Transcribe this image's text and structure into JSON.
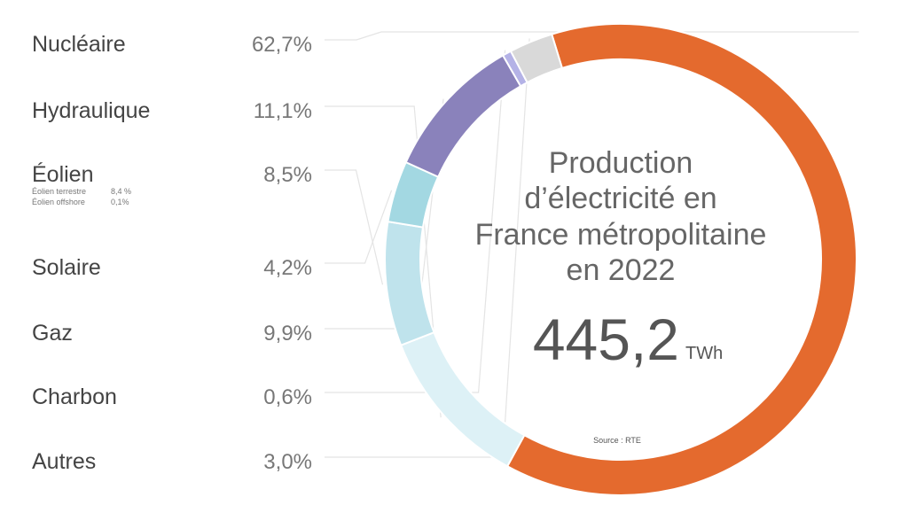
{
  "chart_data": {
    "type": "pie",
    "title_lines": [
      "Production",
      "d’électricité en",
      "France métropolitaine",
      "en 2022"
    ],
    "total_value": "445,2",
    "total_unit": "TWh",
    "source": "Source : RTE",
    "segments": [
      {
        "label": "Nucléaire",
        "value_label": "62,7%",
        "value": 62.7,
        "color": "#e46a2e"
      },
      {
        "label": "Hydraulique",
        "value_label": "11,1%",
        "value": 11.1,
        "color": "#ddf1f6"
      },
      {
        "label": "Éolien",
        "value_label": "8,5%",
        "value": 8.5,
        "color": "#bfe3ec",
        "sub": [
          {
            "label": "Éolien terrestre",
            "value_label": "8,4 %"
          },
          {
            "label": "Éolien offshore",
            "value_label": "0,1%"
          }
        ]
      },
      {
        "label": "Solaire",
        "value_label": "4,2%",
        "value": 4.2,
        "color": "#a3d8e2"
      },
      {
        "label": "Gaz",
        "value_label": "9,9%",
        "value": 9.9,
        "color": "#8a82bb"
      },
      {
        "label": "Charbon",
        "value_label": "0,6%",
        "value": 0.6,
        "color": "#b4b2e6"
      },
      {
        "label": "Autres",
        "value_label": "3,0%",
        "value": 3.0,
        "color": "#d9d9d9"
      }
    ]
  }
}
